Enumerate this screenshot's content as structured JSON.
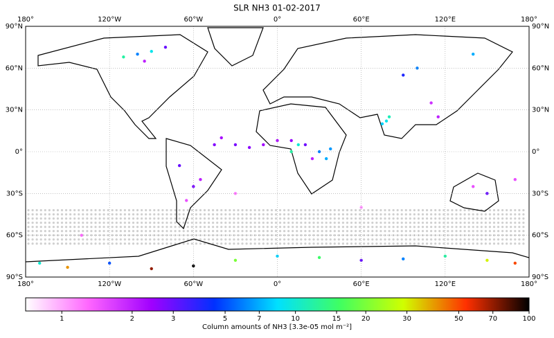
{
  "chart_data": {
    "type": "map",
    "title": "SLR NH3 01-02-2017",
    "xlim": [
      -180,
      180
    ],
    "ylim": [
      -90,
      90
    ],
    "xticks": [
      {
        "value": -180,
        "label": "180°"
      },
      {
        "value": -120,
        "label": "120°W"
      },
      {
        "value": -60,
        "label": "60°W"
      },
      {
        "value": 0,
        "label": "0°"
      },
      {
        "value": 60,
        "label": "60°E"
      },
      {
        "value": 120,
        "label": "120°E"
      },
      {
        "value": 180,
        "label": "180°"
      }
    ],
    "yticks": [
      {
        "value": 90,
        "label": "90°N"
      },
      {
        "value": 60,
        "label": "60°N"
      },
      {
        "value": 30,
        "label": "30°N"
      },
      {
        "value": 0,
        "label": "0°"
      },
      {
        "value": -30,
        "label": "30°S"
      },
      {
        "value": -60,
        "label": "60°S"
      },
      {
        "value": -90,
        "label": "90°S"
      }
    ],
    "grid": true,
    "colorbar": {
      "label": "Column amounts of NH3 [3.3e-05 mol m⁻²]",
      "log": true,
      "lim": [
        0.7,
        100
      ],
      "ticks": [
        1,
        2,
        3,
        5,
        7,
        10,
        15,
        20,
        30,
        50,
        70,
        100
      ],
      "colors": [
        "#ffffff",
        "#ff66ff",
        "#a000ff",
        "#0030ff",
        "#00e0ff",
        "#40ff60",
        "#d0ff00",
        "#ff3000",
        "#000000"
      ]
    },
    "points": {
      "lon": [
        -30,
        -20,
        -10,
        0,
        10,
        20,
        25,
        -40,
        -45,
        30,
        35,
        38,
        15,
        10,
        78,
        80,
        75,
        110,
        115,
        100,
        90,
        140,
        -100,
        -90,
        -80,
        -110,
        -95,
        -55,
        -60,
        -65,
        -70,
        140,
        150,
        -170,
        -150,
        -120,
        -90,
        -60,
        -30,
        0,
        30,
        60,
        90,
        120,
        150,
        170,
        -30,
        170,
        -140,
        60
      ],
      "lat": [
        5,
        3,
        5,
        8,
        8,
        5,
        -5,
        10,
        5,
        0,
        -5,
        2,
        5,
        0,
        22,
        25,
        20,
        35,
        25,
        60,
        55,
        70,
        70,
        72,
        75,
        68,
        65,
        -20,
        -25,
        -35,
        -10,
        -25,
        -30,
        -80,
        -83,
        -80,
        -84,
        -82,
        -78,
        -75,
        -76,
        -78,
        -77,
        -75,
        -78,
        -80,
        -30,
        -20,
        -60,
        -40
      ],
      "values": [
        2.8,
        2.6,
        2.4,
        2.2,
        2.5,
        2.9,
        2,
        2.3,
        2.7,
        6,
        7,
        6.5,
        10,
        12,
        9,
        11,
        8,
        1.8,
        2,
        6,
        4,
        7,
        6,
        9,
        3,
        12,
        2,
        2,
        2.8,
        1.5,
        3,
        1.5,
        3,
        10,
        40,
        5,
        70,
        100,
        20,
        8,
        15,
        3,
        6,
        12,
        30,
        50,
        1.2,
        1.5,
        1.3,
        1.1
      ]
    }
  }
}
